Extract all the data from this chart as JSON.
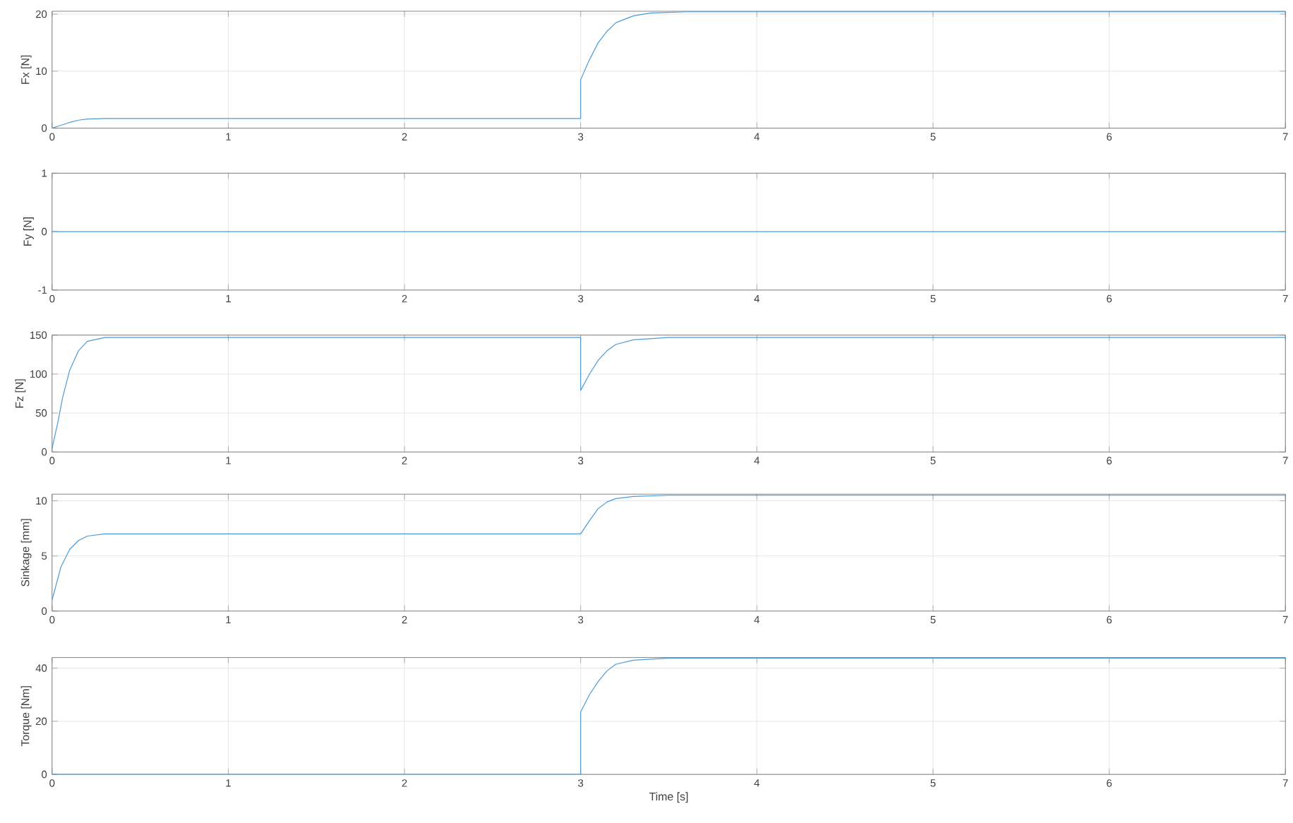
{
  "chart_data": [
    {
      "type": "line",
      "ylabel": "Fx [N]",
      "xlim": [
        0,
        7
      ],
      "xticks": [
        0,
        1,
        2,
        3,
        4,
        5,
        6,
        7
      ],
      "ylim": [
        0,
        20.5
      ],
      "yticks": [
        0,
        10,
        20
      ],
      "grid": true,
      "series": [
        {
          "color": "#4c9bd6",
          "x": [
            0,
            0.05,
            0.1,
            0.15,
            0.2,
            0.3,
            3.0,
            3.0,
            3.05,
            3.1,
            3.15,
            3.2,
            3.3,
            3.4,
            3.6,
            7
          ],
          "values": [
            0,
            0.5,
            1.0,
            1.4,
            1.6,
            1.7,
            1.7,
            8.5,
            12,
            15,
            17,
            18.5,
            19.7,
            20.2,
            20.4,
            20.4
          ]
        }
      ]
    },
    {
      "type": "line",
      "ylabel": "Fy [N]",
      "xlim": [
        0,
        7
      ],
      "xticks": [
        0,
        1,
        2,
        3,
        4,
        5,
        6,
        7
      ],
      "ylim": [
        -1,
        1
      ],
      "yticks": [
        -1,
        0,
        1
      ],
      "grid": true,
      "series": [
        {
          "color": "#4c9bd6",
          "x": [
            0,
            3,
            7
          ],
          "values": [
            0,
            0,
            0
          ]
        }
      ]
    },
    {
      "type": "line",
      "ylabel": "Fz [N]",
      "xlim": [
        0,
        7
      ],
      "xticks": [
        0,
        1,
        2,
        3,
        4,
        5,
        6,
        7
      ],
      "ylim": [
        0,
        150
      ],
      "yticks": [
        0,
        50,
        100,
        150
      ],
      "grid": true,
      "series": [
        {
          "color": "#4c9bd6",
          "x": [
            0,
            0.03,
            0.06,
            0.1,
            0.15,
            0.2,
            0.3,
            3.0,
            3.0,
            3.05,
            3.1,
            3.15,
            3.2,
            3.3,
            3.5,
            7
          ],
          "values": [
            5,
            35,
            70,
            105,
            130,
            142,
            147,
            147,
            79,
            100,
            118,
            130,
            138,
            144,
            147,
            147
          ]
        }
      ]
    },
    {
      "type": "line",
      "ylabel": "Sinkage [mm]",
      "xlim": [
        0,
        7
      ],
      "xticks": [
        0,
        1,
        2,
        3,
        4,
        5,
        6,
        7
      ],
      "ylim": [
        0,
        10.6
      ],
      "yticks": [
        0,
        5,
        10
      ],
      "grid": true,
      "series": [
        {
          "color": "#4c9bd6",
          "x": [
            0,
            0.05,
            0.1,
            0.15,
            0.2,
            0.3,
            3.0,
            3.05,
            3.1,
            3.15,
            3.2,
            3.3,
            3.5,
            7
          ],
          "values": [
            1,
            4,
            5.6,
            6.4,
            6.8,
            7,
            7,
            8.2,
            9.3,
            9.9,
            10.2,
            10.4,
            10.5,
            10.5
          ]
        }
      ]
    },
    {
      "type": "line",
      "ylabel": "Torque [Nm]",
      "xlabel": "Time [s]",
      "xlim": [
        0,
        7
      ],
      "xticks": [
        0,
        1,
        2,
        3,
        4,
        5,
        6,
        7
      ],
      "ylim": [
        0,
        44
      ],
      "yticks": [
        0,
        20,
        40
      ],
      "grid": true,
      "series": [
        {
          "color": "#4c9bd6",
          "x": [
            0,
            3.0,
            3.0,
            3.05,
            3.1,
            3.15,
            3.2,
            3.3,
            3.5,
            7
          ],
          "values": [
            0,
            0,
            23.5,
            30,
            35,
            39,
            41.5,
            43,
            43.8,
            43.8
          ]
        }
      ]
    }
  ]
}
